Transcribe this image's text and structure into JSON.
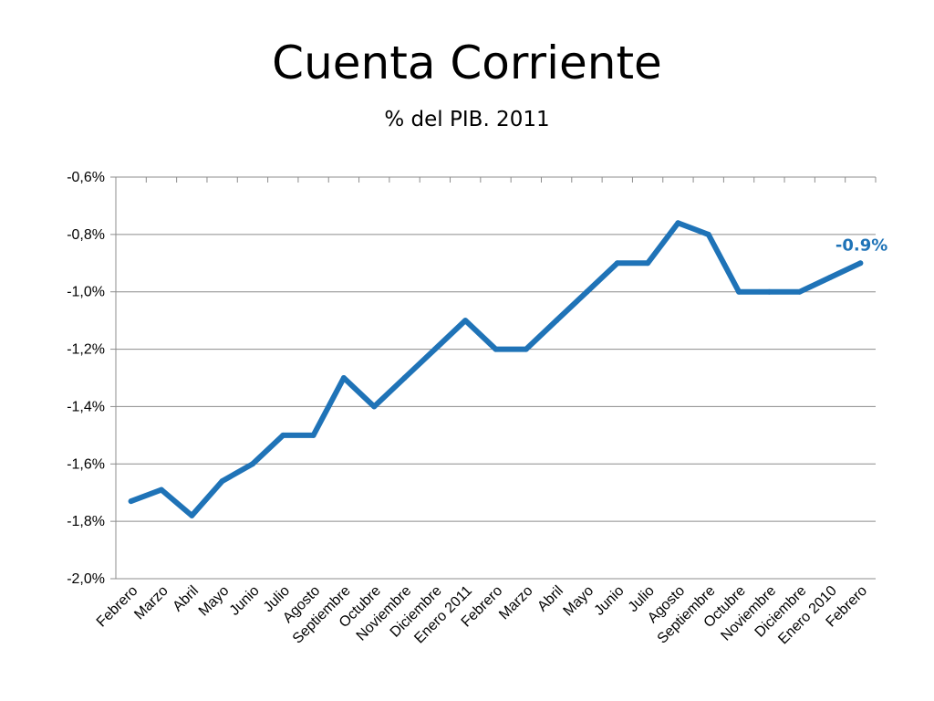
{
  "slide": {
    "title": "Cuenta Corriente",
    "subtitle": "% del PIB. 2011"
  },
  "chart_data": {
    "type": "line",
    "title": "Cuenta Corriente",
    "subtitle": "% del PIB. 2011",
    "xlabel": "",
    "ylabel": "",
    "ylim": [
      -2.0,
      -0.6
    ],
    "y_ticks": [
      -0.6,
      -0.8,
      -1.0,
      -1.2,
      -1.4,
      -1.6,
      -1.8,
      -2.0
    ],
    "y_tick_labels": [
      "-0,6%",
      "-0,8%",
      "-1,0%",
      "-1,2%",
      "-1,4%",
      "-1,6%",
      "-1,8%",
      "-2,0%"
    ],
    "grid": true,
    "series_color": "#1f73b7",
    "categories": [
      "Febrero",
      "Marzo",
      "Abril",
      "Mayo",
      "Junio",
      "Julio",
      "Agosto",
      "Septiembre",
      "Octubre",
      "Noviembre",
      "Diciembre",
      "Enero 2011",
      "Febrero",
      "Marzo",
      "Abril",
      "Mayo",
      "Junio",
      "Julio",
      "Agosto",
      "Septiembre",
      "Octubre",
      "Noviembre",
      "Diciembre",
      "Enero 2010",
      "Febrero"
    ],
    "series": [
      {
        "values": [
          -1.73,
          -1.69,
          -1.78,
          -1.66,
          -1.6,
          -1.5,
          -1.5,
          -1.3,
          -1.4,
          -1.3,
          -1.2,
          -1.1,
          -1.2,
          -1.2,
          -1.1,
          -1.0,
          -0.9,
          -0.9,
          -0.76,
          -0.8,
          -1.0,
          -1.0,
          -1.0,
          -0.95,
          -0.9
        ]
      }
    ],
    "annotations": [
      {
        "text": "-0.9%",
        "target": "last-point"
      }
    ]
  }
}
